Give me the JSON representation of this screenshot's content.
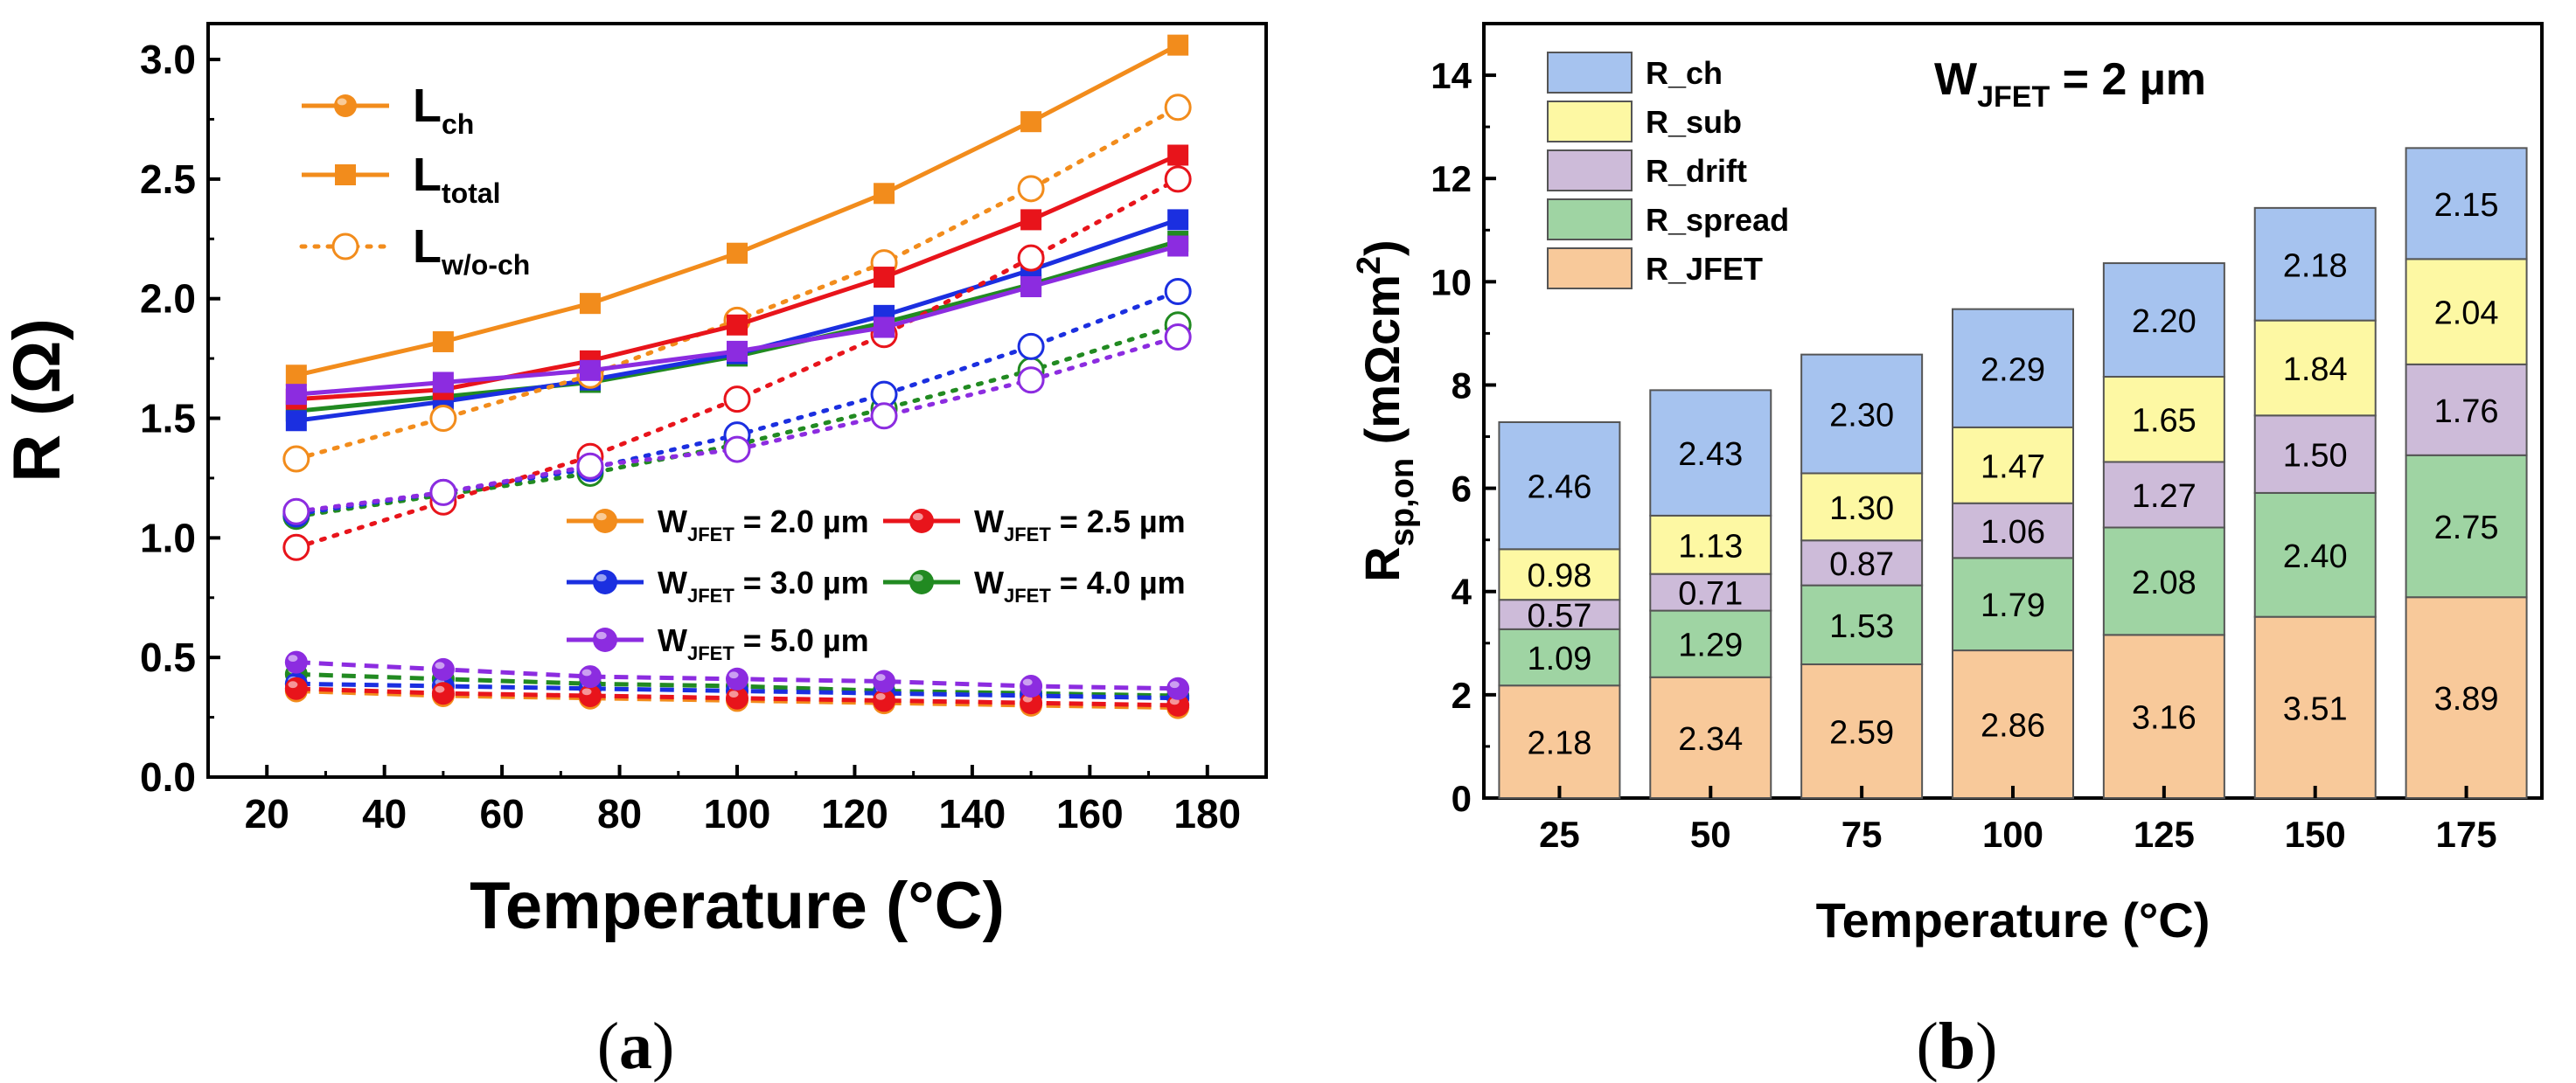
{
  "panels": {
    "a": {
      "caption_open": "(",
      "caption_letter": "a",
      "caption_close": ")"
    },
    "b": {
      "caption_open": "(",
      "caption_letter": "b",
      "caption_close": ")"
    }
  },
  "chart_data": [
    {
      "id": "a",
      "type": "line",
      "xlabel": "Temperature (°C)",
      "ylabel": "R (Ω)",
      "xlim": [
        10,
        190
      ],
      "ylim": [
        0,
        3.15
      ],
      "xticks": [
        20,
        40,
        60,
        80,
        100,
        120,
        140,
        160,
        180
      ],
      "yticks": [
        0.0,
        0.5,
        1.0,
        1.5,
        2.0,
        2.5,
        3.0
      ],
      "x": [
        25,
        50,
        75,
        100,
        125,
        150,
        175
      ],
      "style_legend": [
        {
          "main": "L",
          "sub": "ch",
          "style": "ch"
        },
        {
          "main": "L",
          "sub": "total",
          "style": "total"
        },
        {
          "main": "L",
          "sub": "w/o-ch",
          "style": "woch"
        }
      ],
      "width_legend": [
        {
          "pre": "W",
          "sub": "JFET",
          "post": " = 2.0 µm",
          "color": "#f28c1c"
        },
        {
          "pre": "W",
          "sub": "JFET",
          "post": " = 2.5 µm",
          "color": "#e8141b"
        },
        {
          "pre": "W",
          "sub": "JFET",
          "post": " = 3.0 µm",
          "color": "#1b2fe0"
        },
        {
          "pre": "W",
          "sub": "JFET",
          "post": " = 4.0 µm",
          "color": "#218a21"
        },
        {
          "pre": "W",
          "sub": "JFET",
          "post": " = 5.0 µm",
          "color": "#8c2ce0"
        }
      ],
      "series": [
        {
          "name": "W_JFET = 2.0 µm",
          "color": "#f28c1c",
          "L_total": [
            1.68,
            1.82,
            1.98,
            2.19,
            2.44,
            2.74,
            3.06
          ],
          "L_wo_ch": [
            1.33,
            1.5,
            1.68,
            1.91,
            2.15,
            2.46,
            2.8
          ],
          "L_ch": [
            0.36,
            0.34,
            0.33,
            0.32,
            0.31,
            0.3,
            0.29
          ]
        },
        {
          "name": "W_JFET = 2.5 µm",
          "color": "#e8141b",
          "L_total": [
            1.58,
            1.62,
            1.74,
            1.89,
            2.09,
            2.33,
            2.6
          ],
          "L_wo_ch": [
            0.96,
            1.15,
            1.34,
            1.58,
            1.85,
            2.17,
            2.5
          ],
          "L_ch": [
            0.37,
            0.35,
            0.34,
            0.33,
            0.32,
            0.31,
            0.3
          ]
        },
        {
          "name": "W_JFET = 3.0 µm",
          "color": "#1b2fe0",
          "L_total": [
            1.49,
            1.57,
            1.66,
            1.77,
            1.93,
            2.12,
            2.33
          ],
          "L_wo_ch": [
            1.1,
            1.19,
            1.29,
            1.43,
            1.6,
            1.8,
            2.03
          ],
          "L_ch": [
            0.39,
            0.38,
            0.37,
            0.36,
            0.35,
            0.34,
            0.33
          ]
        },
        {
          "name": "W_JFET = 4.0 µm",
          "color": "#218a21",
          "L_total": [
            1.53,
            1.59,
            1.65,
            1.76,
            1.9,
            2.06,
            2.24
          ],
          "L_wo_ch": [
            1.09,
            1.18,
            1.27,
            1.39,
            1.54,
            1.7,
            1.89
          ],
          "L_ch": [
            0.43,
            0.41,
            0.39,
            0.38,
            0.36,
            0.35,
            0.34
          ]
        },
        {
          "name": "W_JFET = 5.0 µm",
          "color": "#8c2ce0",
          "L_total": [
            1.6,
            1.65,
            1.7,
            1.78,
            1.88,
            2.05,
            2.22
          ],
          "L_wo_ch": [
            1.11,
            1.19,
            1.3,
            1.37,
            1.51,
            1.66,
            1.84
          ],
          "L_ch": [
            0.48,
            0.45,
            0.42,
            0.41,
            0.4,
            0.38,
            0.37
          ]
        }
      ]
    },
    {
      "id": "b",
      "type": "bar",
      "stacked": true,
      "title_pre": "W",
      "title_sub": "JFET",
      "title_post": " = 2 µm",
      "xlabel": "Temperature (°C)",
      "ylabel_main": "R",
      "ylabel_sub": "sp,on",
      "ylabel_unit": " (mΩcm",
      "ylabel_sup": "2",
      "ylabel_close": ")",
      "ylim": [
        0,
        15
      ],
      "yticks": [
        0,
        2,
        4,
        6,
        8,
        10,
        12,
        14
      ],
      "categories": [
        "25",
        "50",
        "75",
        "100",
        "125",
        "150",
        "175"
      ],
      "series": [
        {
          "name": "R_JFET",
          "color": "#f8c99a",
          "values": [
            2.18,
            2.34,
            2.59,
            2.86,
            3.16,
            3.51,
            3.89
          ],
          "labels": [
            "2.18",
            "2.34",
            "2.59",
            "2.86",
            "3.16",
            "3.51",
            "3.89"
          ]
        },
        {
          "name": "R_spread",
          "color": "#9fd4a3",
          "values": [
            1.09,
            1.29,
            1.53,
            1.79,
            2.08,
            2.4,
            2.75
          ],
          "labels": [
            "1.09",
            "1.29",
            "1.53",
            "1.79",
            "2.08",
            "2.40",
            "2.75"
          ]
        },
        {
          "name": "R_drift",
          "color": "#cdbbd9",
          "values": [
            0.57,
            0.71,
            0.87,
            1.06,
            1.27,
            1.5,
            1.76
          ],
          "labels": [
            "0.57",
            "0.71",
            "0.87",
            "1.06",
            "1.27",
            "1.50",
            "1.76"
          ]
        },
        {
          "name": "R_sub",
          "color": "#fdf8a3",
          "values": [
            0.98,
            1.13,
            1.3,
            1.47,
            1.65,
            1.84,
            2.04
          ],
          "labels": [
            "0.98",
            "1.13",
            "1.30",
            "1.47",
            "1.65",
            "1.84",
            "2.04"
          ]
        },
        {
          "name": "R_ch",
          "color": "#a6c3ef",
          "values": [
            2.46,
            2.43,
            2.3,
            2.29,
            2.2,
            2.18,
            2.15
          ],
          "labels": [
            "2.46",
            "2.43",
            "2.30",
            "2.29",
            "2.20",
            "2.18",
            "2.15"
          ]
        }
      ],
      "legend_order": [
        "R_ch",
        "R_sub",
        "R_drift",
        "R_spread",
        "R_JFET"
      ]
    }
  ]
}
